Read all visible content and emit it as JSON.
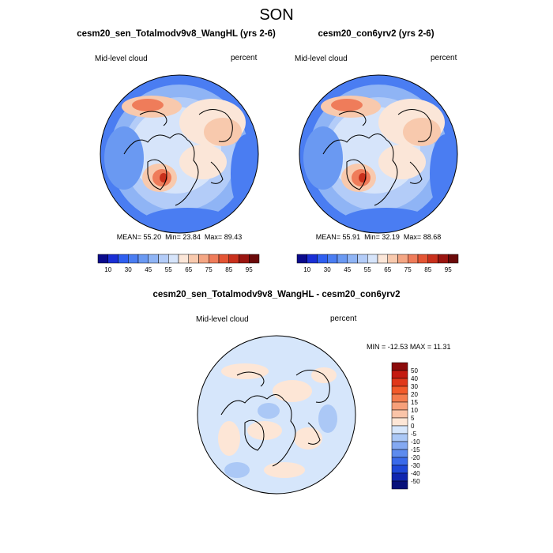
{
  "figure": {
    "suptitle": "SON"
  },
  "chart_data": [
    {
      "type": "heatmap",
      "projection": "north-polar-stereographic",
      "title": "cesm20_sen_Totalmodv9v8_WangHL (yrs 2-6)",
      "variable_label": "Mid-level cloud",
      "units": "percent",
      "stats": {
        "mean_label": "MEAN=",
        "mean": "55.20",
        "min_label": "Min=",
        "min": "23.84",
        "max_label": "Max=",
        "max": "89.43"
      },
      "colorbar": {
        "orientation": "horizontal",
        "levels": [
          10,
          20,
          30,
          40,
          45,
          50,
          55,
          60,
          65,
          70,
          75,
          80,
          85,
          90,
          95
        ],
        "tick_labels": [
          "10",
          "30",
          "45",
          "55",
          "65",
          "75",
          "85",
          "95"
        ],
        "colors": [
          "#0b0b8c",
          "#1a2fd6",
          "#2f5ff0",
          "#4a7df2",
          "#6a99f2",
          "#8fb4f5",
          "#b3ccf8",
          "#d6e4fa",
          "#fbe6d8",
          "#f8c9ad",
          "#f4a684",
          "#ef7c5a",
          "#e45534",
          "#c9301c",
          "#9a1510",
          "#6b0a0a"
        ]
      }
    },
    {
      "type": "heatmap",
      "projection": "north-polar-stereographic",
      "title": "cesm20_con6yrv2 (yrs 2-6)",
      "variable_label": "Mid-level cloud",
      "units": "percent",
      "stats": {
        "mean_label": "MEAN=",
        "mean": "55.91",
        "min_label": "Min=",
        "min": "32.19",
        "max_label": "Max=",
        "max": "88.68"
      },
      "colorbar": {
        "orientation": "horizontal",
        "levels": [
          10,
          20,
          30,
          40,
          45,
          50,
          55,
          60,
          65,
          70,
          75,
          80,
          85,
          90,
          95
        ],
        "tick_labels": [
          "10",
          "30",
          "45",
          "55",
          "65",
          "75",
          "85",
          "95"
        ],
        "colors": [
          "#0b0b8c",
          "#1a2fd6",
          "#2f5ff0",
          "#4a7df2",
          "#6a99f2",
          "#8fb4f5",
          "#b3ccf8",
          "#d6e4fa",
          "#fbe6d8",
          "#f8c9ad",
          "#f4a684",
          "#ef7c5a",
          "#e45534",
          "#c9301c",
          "#9a1510",
          "#6b0a0a"
        ]
      }
    },
    {
      "type": "heatmap",
      "projection": "north-polar-stereographic",
      "title": "cesm20_sen_Totalmodv9v8_WangHL - cesm20_con6yrv2",
      "variable_label": "Mid-level cloud",
      "units": "percent",
      "stats": {
        "min_label": "MIN =",
        "min": "-12.53",
        "max_label": "MAX =",
        "max": "11.31"
      },
      "colorbar": {
        "orientation": "vertical",
        "levels": [
          50,
          40,
          30,
          20,
          15,
          10,
          5,
          0,
          -5,
          -10,
          -15,
          -20,
          -30,
          -40,
          -50
        ],
        "tick_labels": [
          "50",
          "40",
          "30",
          "20",
          "15",
          "10",
          "5",
          "0",
          "-5",
          "-10",
          "-15",
          "-20",
          "-30",
          "-40",
          "-50"
        ],
        "colors": [
          "#8c0b0b",
          "#c41a10",
          "#e0381a",
          "#f25a2a",
          "#f47c4e",
          "#f7a07a",
          "#fac4a8",
          "#fde6d6",
          "#d6e6fb",
          "#abc8f6",
          "#84a9f2",
          "#5d8bee",
          "#3a6aea",
          "#1f48d8",
          "#1026b0",
          "#08117a"
        ]
      }
    }
  ]
}
